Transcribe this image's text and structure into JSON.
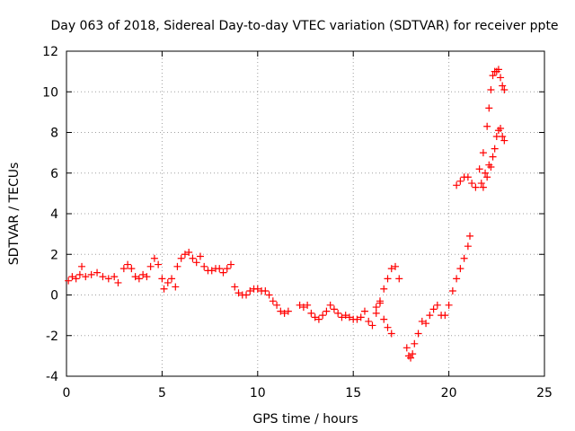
{
  "chart_data": {
    "type": "scatter",
    "title": "Day 063 of 2018, Sidereal Day-to-day VTEC variation (SDTVAR) for receiver ppte",
    "xlabel": "GPS time / hours",
    "ylabel": "SDTVAR / TECUs",
    "xlim": [
      0,
      25
    ],
    "ylim": [
      -4,
      12
    ],
    "xticks": [
      "0",
      "5",
      "10",
      "15",
      "20",
      "25"
    ],
    "yticks": [
      "-4",
      "-2",
      "0",
      "2",
      "4",
      "6",
      "8",
      "10",
      "12"
    ],
    "grid": true,
    "marker": "+",
    "series": [
      {
        "name": "SDTVAR",
        "color": "#ff0000",
        "x": [
          0.1,
          0.3,
          0.5,
          0.7,
          0.8,
          1.0,
          1.3,
          1.6,
          1.9,
          2.2,
          2.5,
          2.7,
          3.0,
          3.2,
          3.4,
          3.6,
          3.8,
          4.0,
          4.2,
          4.4,
          4.6,
          4.8,
          5.0,
          5.1,
          5.3,
          5.5,
          5.7,
          5.8,
          6.0,
          6.2,
          6.4,
          6.6,
          6.8,
          7.0,
          7.2,
          7.4,
          7.6,
          7.8,
          8.0,
          8.2,
          8.4,
          8.6,
          8.8,
          9.0,
          9.2,
          9.4,
          9.6,
          9.8,
          10.0,
          10.2,
          10.4,
          10.6,
          10.8,
          11.0,
          11.2,
          11.4,
          11.6,
          12.2,
          12.4,
          12.6,
          12.8,
          13.0,
          13.2,
          13.4,
          13.6,
          13.8,
          14.0,
          14.2,
          14.4,
          14.6,
          14.8,
          15.0,
          15.2,
          15.4,
          15.6,
          15.8,
          16.0,
          16.2,
          16.4,
          16.6,
          16.8,
          17.0,
          17.2,
          17.4,
          17.8,
          17.9,
          18.0,
          18.1,
          18.2,
          18.4,
          18.6,
          18.8,
          19.0,
          19.2,
          19.4,
          19.6,
          19.8,
          20.0,
          20.2,
          20.4,
          20.6,
          20.8,
          21.0,
          21.1,
          20.4,
          20.6,
          20.8,
          21.0,
          21.2,
          21.4,
          21.6,
          21.8,
          22.0,
          22.1,
          22.2,
          22.3,
          22.4,
          22.5,
          22.6,
          22.7,
          22.8,
          22.9,
          21.7,
          21.8,
          21.9,
          22.0,
          22.1,
          22.2,
          22.3,
          22.4,
          22.5,
          22.6,
          22.7,
          22.8,
          22.9,
          16.2,
          16.4,
          16.6,
          16.8,
          17.0
        ],
        "y": [
          0.7,
          0.9,
          0.8,
          1.0,
          1.4,
          0.9,
          1.0,
          1.1,
          0.9,
          0.8,
          0.9,
          0.6,
          1.3,
          1.5,
          1.3,
          0.9,
          0.8,
          1.0,
          0.9,
          1.4,
          1.8,
          1.5,
          0.8,
          0.3,
          0.6,
          0.8,
          0.4,
          1.4,
          1.8,
          2.0,
          2.1,
          1.8,
          1.6,
          1.9,
          1.4,
          1.2,
          1.2,
          1.3,
          1.3,
          1.1,
          1.3,
          1.5,
          0.4,
          0.1,
          0.0,
          0.0,
          0.2,
          0.3,
          0.3,
          0.2,
          0.2,
          0.0,
          -0.3,
          -0.5,
          -0.8,
          -0.9,
          -0.8,
          -0.5,
          -0.6,
          -0.5,
          -0.9,
          -1.1,
          -1.2,
          -1.0,
          -0.8,
          -0.5,
          -0.7,
          -0.9,
          -1.1,
          -1.0,
          -1.1,
          -1.2,
          -1.2,
          -1.1,
          -0.8,
          -1.3,
          -1.5,
          -0.9,
          -0.3,
          0.3,
          0.8,
          1.3,
          1.4,
          0.8,
          -2.6,
          -3.0,
          -3.1,
          -2.9,
          -2.4,
          -1.9,
          -1.3,
          -1.4,
          -1.0,
          -0.7,
          -0.5,
          -1.0,
          -1.0,
          -0.5,
          0.2,
          0.8,
          1.3,
          1.8,
          2.4,
          2.9,
          5.4,
          5.6,
          5.8,
          5.8,
          5.5,
          5.3,
          6.2,
          7.0,
          8.3,
          9.2,
          10.1,
          10.8,
          11.0,
          11.0,
          11.1,
          10.7,
          10.3,
          10.1,
          5.5,
          5.3,
          6.0,
          5.8,
          6.4,
          6.3,
          6.8,
          7.2,
          7.8,
          8.1,
          8.2,
          7.8,
          7.6,
          -0.6,
          -0.4,
          -1.2,
          -1.6,
          -1.9
        ]
      }
    ]
  }
}
